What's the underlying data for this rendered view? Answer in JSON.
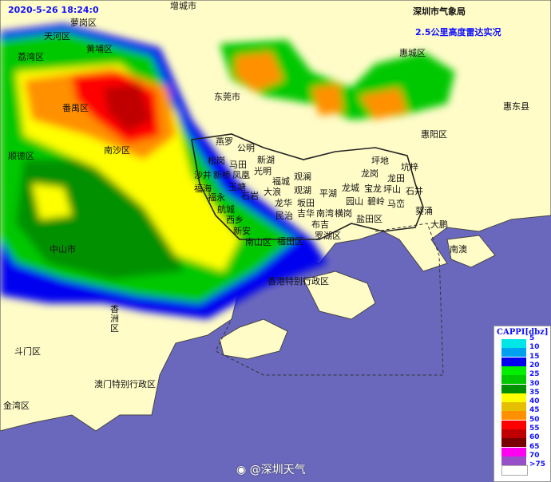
{
  "header": {
    "timestamp": "2020-5-26 18:24:0",
    "agency": "深圳市气象局",
    "product": "2.5公里高度雷达实况"
  },
  "colors": {
    "sea": "#6a68bd",
    "land": "#fffcc8",
    "boundary": "#222222"
  },
  "places": [
    "萝岗区",
    "增城市",
    "天河区",
    "黄埔区",
    "荔湾区",
    "惠城区",
    "番禺区",
    "东莞市",
    "惠东县",
    "惠阳区",
    "南沙区",
    "顺德区",
    "中山市",
    "香港特别行政区",
    "香洲区",
    "斗门区",
    "澳门特别行政区",
    "金湾区",
    "南澳",
    "燕罗",
    "公明",
    "新湖",
    "松岗",
    "马田",
    "光明",
    "沙井",
    "新桥",
    "凤凰",
    "福城",
    "观澜",
    "福海",
    "玉塘",
    "观湖",
    "平湖",
    "福永",
    "石岩",
    "大浪",
    "龙华",
    "坂田",
    "航城",
    "吉华",
    "南湾",
    "横岗",
    "西乡",
    "民治",
    "布吉",
    "新安",
    "罗湖区",
    "南山区",
    "福田区",
    "坪地",
    "龙岗",
    "坑梓",
    "龙田",
    "龙城",
    "宝龙",
    "坪山",
    "石井",
    "园山",
    "碧岭",
    "马峦",
    "盐田区",
    "葵涌",
    "大鹏"
  ],
  "legend": {
    "title": "CAPPI[dbz]",
    "items": [
      {
        "value": "5",
        "color": "#00e5e5"
      },
      {
        "value": "10",
        "color": "#00a0f0"
      },
      {
        "value": "15",
        "color": "#0000f0"
      },
      {
        "value": "20",
        "color": "#00f000"
      },
      {
        "value": "25",
        "color": "#00c800"
      },
      {
        "value": "30",
        "color": "#009000"
      },
      {
        "value": "35",
        "color": "#ffff00"
      },
      {
        "value": "40",
        "color": "#e6c000"
      },
      {
        "value": "45",
        "color": "#ff9000"
      },
      {
        "value": "50",
        "color": "#ff0000"
      },
      {
        "value": "55",
        "color": "#c00000"
      },
      {
        "value": "60",
        "color": "#780000"
      },
      {
        "value": "65",
        "color": "#ff00f0"
      },
      {
        "value": "70",
        "color": "#9850c8"
      },
      {
        "value": ">75",
        "color": "#ffffff"
      }
    ]
  },
  "watermark": "@深圳天气"
}
